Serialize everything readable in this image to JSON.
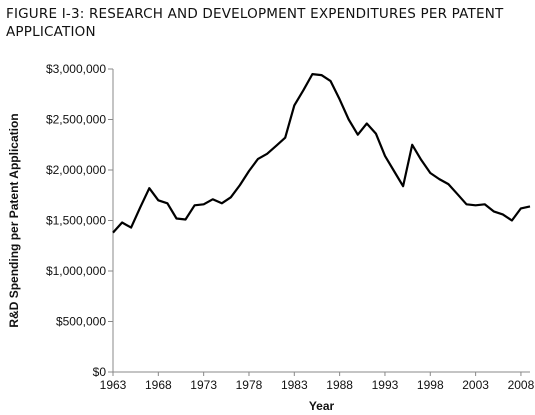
{
  "chart_data": {
    "type": "line",
    "title_lines": [
      "FIGURE I-3: RESEARCH AND DEVELOPMENT EXPENDITURES PER PATENT",
      "APPLICATION"
    ],
    "xlabel": "Year",
    "ylabel": "R&D Spending per Patent Application",
    "xlim": [
      1963,
      2009
    ],
    "ylim": [
      0,
      3000000
    ],
    "x_ticks": [
      1963,
      1968,
      1973,
      1978,
      1983,
      1988,
      1993,
      1998,
      2003,
      2008
    ],
    "y_ticks": [
      0,
      500000,
      1000000,
      1500000,
      2000000,
      2500000,
      3000000
    ],
    "y_tick_labels": [
      "$0",
      "$500,000",
      "$1,000,000",
      "$1,500,000",
      "$2,000,000",
      "$2,500,000",
      "$3,000,000"
    ],
    "grid": false,
    "line_color": "#000000",
    "series": [
      {
        "x": [
          1963,
          1964,
          1965,
          1966,
          1967,
          1968,
          1969,
          1970,
          1971,
          1972,
          1973,
          1974,
          1975,
          1976,
          1977,
          1978,
          1979,
          1980,
          1981,
          1982,
          1983,
          1984,
          1985,
          1986,
          1987,
          1988,
          1989,
          1990,
          1991,
          1992,
          1993,
          1994,
          1995,
          1996,
          1997,
          1998,
          1999,
          2000,
          2001,
          2002,
          2003,
          2004,
          2005,
          2006,
          2007,
          2008,
          2009
        ],
        "y": [
          1380000,
          1480000,
          1430000,
          1630000,
          1820000,
          1700000,
          1670000,
          1520000,
          1510000,
          1650000,
          1660000,
          1710000,
          1670000,
          1730000,
          1850000,
          1990000,
          2110000,
          2160000,
          2240000,
          2320000,
          2640000,
          2790000,
          2950000,
          2940000,
          2880000,
          2700000,
          2500000,
          2350000,
          2460000,
          2360000,
          2140000,
          1990000,
          1840000,
          2250000,
          2100000,
          1970000,
          1910000,
          1860000,
          1760000,
          1660000,
          1650000,
          1660000,
          1590000,
          1560000,
          1500000,
          1620000,
          1640000
        ]
      }
    ]
  }
}
